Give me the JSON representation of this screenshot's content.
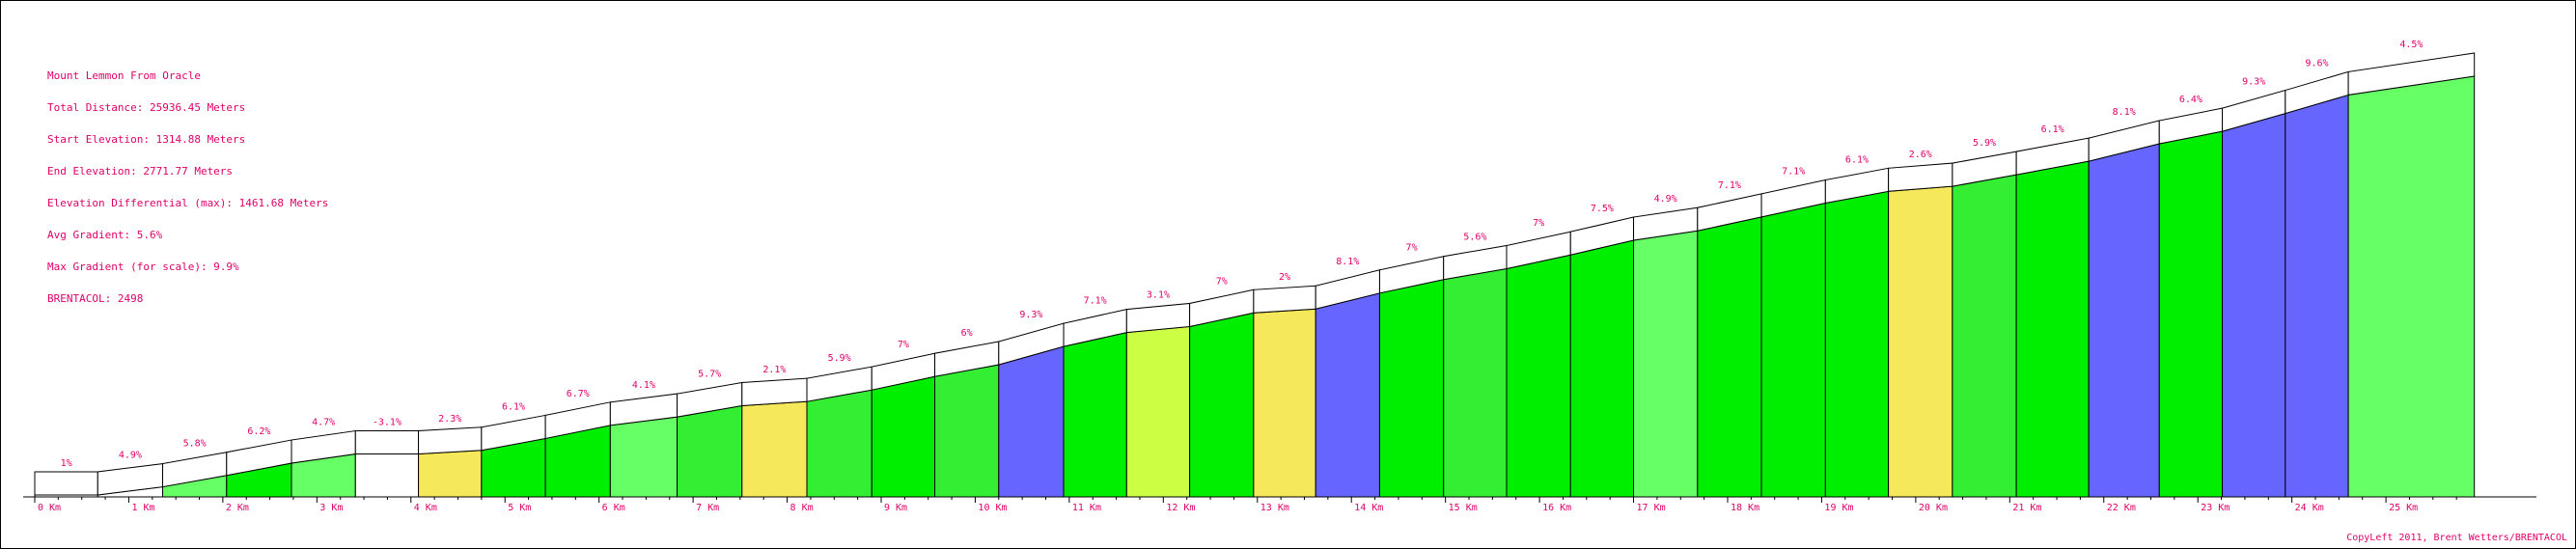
{
  "info": {
    "title": "Mount Lemmon From Oracle",
    "total_distance": "Total Distance: 25936.45 Meters",
    "start_elevation": "Start Elevation: 1314.88 Meters",
    "end_elevation": "End Elevation: 2771.77 Meters",
    "elevation_differential": "Elevation Differential (max): 1461.68 Meters",
    "avg_gradient": "Avg Gradient: 5.6%",
    "max_gradient": "Max Gradient (for scale): 9.9%",
    "brentacol": "BRENTACOL: 2498"
  },
  "copyleft": "CopyLeft 2011, Brent Wetters/BRENTACOL",
  "colors": {
    "frame": "#000000",
    "text": "#e0006a",
    "white": "#ffffff",
    "yellow": "#f5e85a",
    "light_green": "#66ff66",
    "lime": "#ccff44",
    "green": "#00ee00",
    "mid_green": "#33ee33",
    "blue": "#6666ff"
  },
  "chart_data": {
    "type": "area",
    "title": "Mount Lemmon From Oracle",
    "xlabel": "",
    "ylabel": "",
    "x_unit": "Km",
    "x_tick_labels": [
      "0 Km",
      "1 Km",
      "2 Km",
      "3 Km",
      "4 Km",
      "5 Km",
      "6 Km",
      "7 Km",
      "8 Km",
      "9 Km",
      "10 Km",
      "11 Km",
      "12 Km",
      "13 Km",
      "14 Km",
      "15 Km",
      "16 Km",
      "17 Km",
      "18 Km",
      "19 Km",
      "20 Km",
      "21 Km",
      "22 Km",
      "23 Km",
      "24 Km",
      "25 Km"
    ],
    "xlim": [
      0,
      26.6
    ],
    "start_elevation_m": 1314.88,
    "end_elevation_m": 2771.77,
    "segments": [
      {
        "x0": 0.0,
        "x1": 0.67,
        "grade_label": "1%",
        "color": "white"
      },
      {
        "x0": 0.67,
        "x1": 1.36,
        "grade_label": "4.9%",
        "color": "white"
      },
      {
        "x0": 1.36,
        "x1": 2.04,
        "grade_label": "5.8%",
        "color": "light_green"
      },
      {
        "x0": 2.04,
        "x1": 2.73,
        "grade_label": "6.2%",
        "color": "green"
      },
      {
        "x0": 2.73,
        "x1": 3.41,
        "grade_label": "4.7%",
        "color": "light_green"
      },
      {
        "x0": 3.41,
        "x1": 4.08,
        "grade_label": "-3.1%",
        "color": "white"
      },
      {
        "x0": 4.08,
        "x1": 4.75,
        "grade_label": "2.3%",
        "color": "yellow"
      },
      {
        "x0": 4.75,
        "x1": 5.43,
        "grade_label": "6.1%",
        "color": "green"
      },
      {
        "x0": 5.43,
        "x1": 6.12,
        "grade_label": "6.7%",
        "color": "green"
      },
      {
        "x0": 6.12,
        "x1": 6.83,
        "grade_label": "4.1%",
        "color": "light_green"
      },
      {
        "x0": 6.83,
        "x1": 7.52,
        "grade_label": "5.7%",
        "color": "mid_green"
      },
      {
        "x0": 7.52,
        "x1": 8.21,
        "grade_label": "2.1%",
        "color": "yellow"
      },
      {
        "x0": 8.21,
        "x1": 8.9,
        "grade_label": "5.9%",
        "color": "mid_green"
      },
      {
        "x0": 8.9,
        "x1": 9.57,
        "grade_label": "7%",
        "color": "green"
      },
      {
        "x0": 9.57,
        "x1": 10.25,
        "grade_label": "6%",
        "color": "mid_green"
      },
      {
        "x0": 10.25,
        "x1": 10.94,
        "grade_label": "9.3%",
        "color": "blue"
      },
      {
        "x0": 10.94,
        "x1": 11.61,
        "grade_label": "7.1%",
        "color": "green"
      },
      {
        "x0": 11.61,
        "x1": 12.28,
        "grade_label": "3.1%",
        "color": "lime"
      },
      {
        "x0": 12.28,
        "x1": 12.96,
        "grade_label": "7%",
        "color": "green"
      },
      {
        "x0": 12.96,
        "x1": 13.62,
        "grade_label": "2%",
        "color": "yellow"
      },
      {
        "x0": 13.62,
        "x1": 14.3,
        "grade_label": "8.1%",
        "color": "blue"
      },
      {
        "x0": 14.3,
        "x1": 14.98,
        "grade_label": "7%",
        "color": "green"
      },
      {
        "x0": 14.98,
        "x1": 15.65,
        "grade_label": "5.6%",
        "color": "mid_green"
      },
      {
        "x0": 15.65,
        "x1": 16.33,
        "grade_label": "7%",
        "color": "green"
      },
      {
        "x0": 16.33,
        "x1": 17.0,
        "grade_label": "7.5%",
        "color": "green"
      },
      {
        "x0": 17.0,
        "x1": 17.68,
        "grade_label": "4.9%",
        "color": "light_green"
      },
      {
        "x0": 17.68,
        "x1": 18.36,
        "grade_label": "7.1%",
        "color": "green"
      },
      {
        "x0": 18.36,
        "x1": 19.04,
        "grade_label": "7.1%",
        "color": "green"
      },
      {
        "x0": 19.04,
        "x1": 19.71,
        "grade_label": "6.1%",
        "color": "green"
      },
      {
        "x0": 19.71,
        "x1": 20.39,
        "grade_label": "2.6%",
        "color": "yellow"
      },
      {
        "x0": 20.39,
        "x1": 21.07,
        "grade_label": "5.9%",
        "color": "mid_green"
      },
      {
        "x0": 21.07,
        "x1": 21.84,
        "grade_label": "6.1%",
        "color": "green"
      },
      {
        "x0": 21.84,
        "x1": 22.59,
        "grade_label": "8.1%",
        "color": "blue"
      },
      {
        "x0": 22.59,
        "x1": 23.26,
        "grade_label": "6.4%",
        "color": "green"
      },
      {
        "x0": 23.26,
        "x1": 23.93,
        "grade_label": "9.3%",
        "color": "blue"
      },
      {
        "x0": 23.93,
        "x1": 24.6,
        "grade_label": "9.6%",
        "color": "blue"
      },
      {
        "x0": 24.6,
        "x1": 25.94,
        "grade_label": "4.5%",
        "color": "light_green"
      }
    ],
    "profile_elevation_m": [
      1314.9,
      1314.9,
      1343.2,
      1383.0,
      1425.5,
      1457.5,
      1457.5,
      1470.0,
      1511.5,
      1557.2,
      1586.4,
      1625.4,
      1639.9,
      1680.2,
      1727.1,
      1768.0,
      1831.3,
      1880.1,
      1900.8,
      1948.4,
      1962.0,
      2017.1,
      2064.5,
      2102.2,
      2150.1,
      2201.1,
      2234.0,
      2282.0,
      2330.3,
      2371.3,
      2388.8,
      2429.1,
      2476.1,
      2536.8,
      2579.9,
      2642.3,
      2706.6,
      2771.8
    ],
    "grid": false,
    "legend": "none"
  }
}
